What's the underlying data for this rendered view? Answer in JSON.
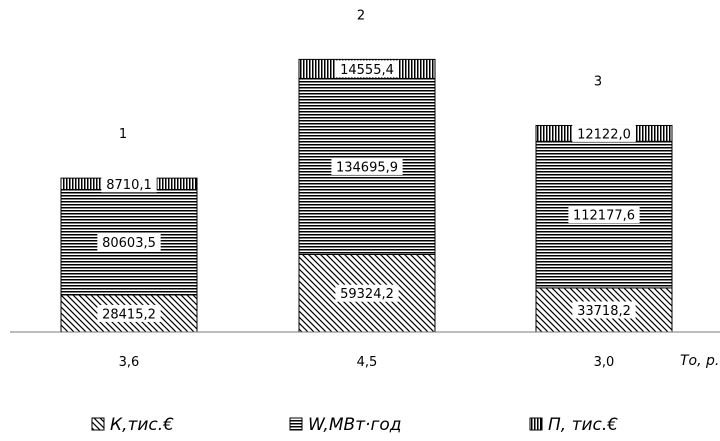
{
  "chart_data": {
    "type": "bar",
    "stacked": true,
    "bar_labels": [
      "1",
      "2",
      "3"
    ],
    "categories": [
      "3,6",
      "4,5",
      "3,0"
    ],
    "x_axis_title": "То, р.",
    "series": [
      {
        "name": "К,тис.€",
        "values": [
          28415.2,
          59324.2,
          33718.2
        ],
        "labels": [
          "28415,2",
          "59324,2",
          "33718,2"
        ],
        "pattern": "diagonal"
      },
      {
        "name": "W,МВт·год",
        "values": [
          80603.5,
          134695.9,
          112177.6
        ],
        "labels": [
          "80603,5",
          "134695,9",
          "112177,6"
        ],
        "pattern": "horizontal"
      },
      {
        "name": "П, тис.€",
        "values": [
          8710.1,
          14555.4,
          12122.0
        ],
        "labels": [
          "8710,1",
          "14555,4",
          "12122,0"
        ],
        "pattern": "vertical"
      }
    ],
    "legend_position": "bottom",
    "grid": false,
    "colors": {
      "ink": "#000000",
      "background": "#ffffff"
    }
  }
}
